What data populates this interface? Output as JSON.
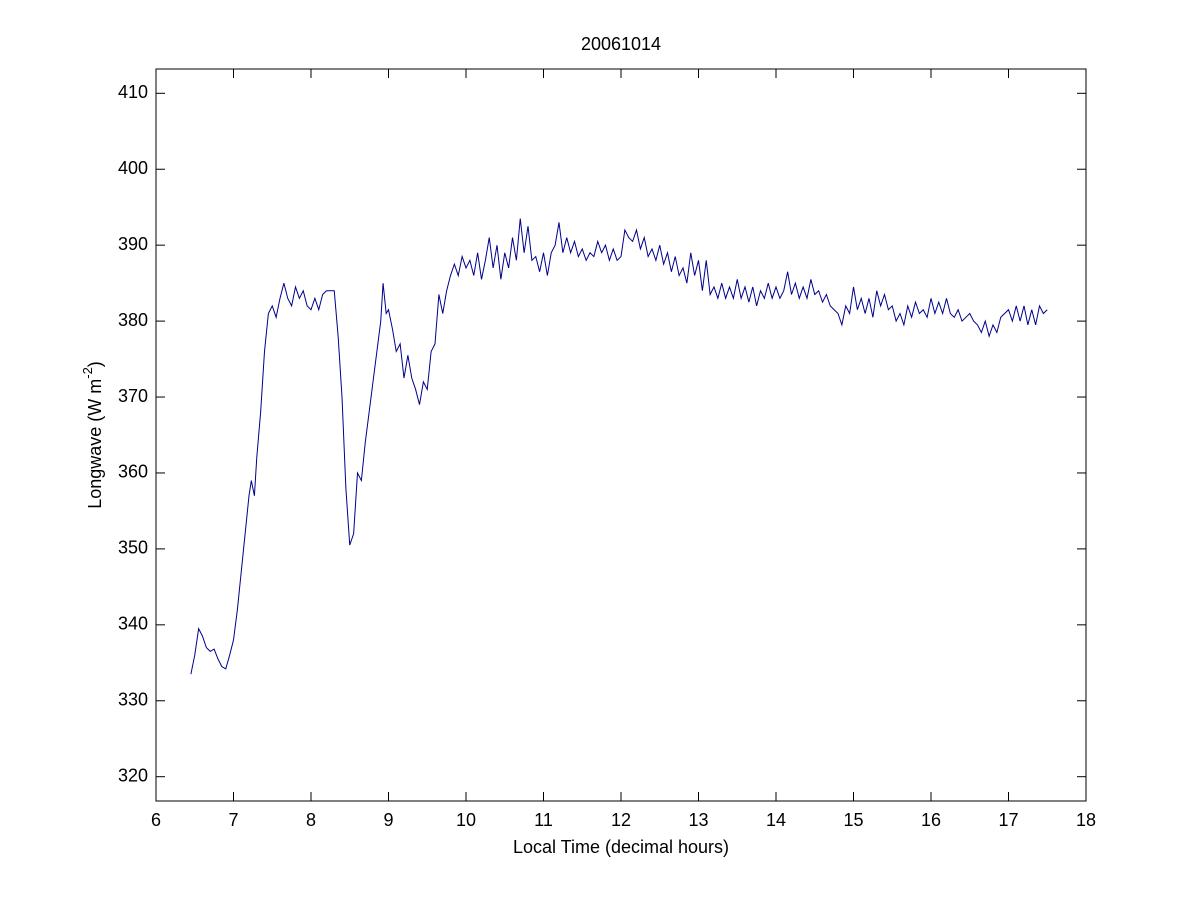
{
  "chart_data": {
    "type": "line",
    "title": "20061014",
    "x_label": "Local Time (decimal hours)",
    "y_label": [
      "Longwave (W m",
      "-2",
      ")"
    ],
    "xlim": [
      6,
      18
    ],
    "xticks": [
      6,
      7,
      8,
      9,
      10,
      11,
      12,
      13,
      14,
      15,
      16,
      17,
      18
    ],
    "ylim": [
      316.8,
      413.2
    ],
    "yticks": [
      320,
      330,
      340,
      350,
      360,
      370,
      380,
      390,
      400,
      410
    ],
    "grid": false,
    "x": [
      6.45,
      6.5,
      6.55,
      6.6,
      6.65,
      6.7,
      6.75,
      6.8,
      6.85,
      6.9,
      6.95,
      7.0,
      7.05,
      7.1,
      7.15,
      7.2,
      7.23,
      7.27,
      7.3,
      7.35,
      7.4,
      7.45,
      7.5,
      7.55,
      7.6,
      7.65,
      7.7,
      7.75,
      7.8,
      7.85,
      7.9,
      7.95,
      8.0,
      8.05,
      8.1,
      8.15,
      8.2,
      8.25,
      8.3,
      8.35,
      8.4,
      8.45,
      8.5,
      8.55,
      8.6,
      8.65,
      8.7,
      8.75,
      8.8,
      8.85,
      8.9,
      8.93,
      8.97,
      9.0,
      9.05,
      9.1,
      9.15,
      9.2,
      9.25,
      9.3,
      9.35,
      9.4,
      9.45,
      9.5,
      9.55,
      9.6,
      9.65,
      9.7,
      9.75,
      9.8,
      9.85,
      9.9,
      9.95,
      10.0,
      10.05,
      10.1,
      10.15,
      10.2,
      10.25,
      10.3,
      10.35,
      10.4,
      10.45,
      10.5,
      10.55,
      10.6,
      10.65,
      10.7,
      10.75,
      10.8,
      10.85,
      10.9,
      10.95,
      11.0,
      11.05,
      11.1,
      11.15,
      11.2,
      11.25,
      11.3,
      11.35,
      11.4,
      11.45,
      11.5,
      11.55,
      11.6,
      11.65,
      11.7,
      11.75,
      11.8,
      11.85,
      11.9,
      11.95,
      12.0,
      12.05,
      12.1,
      12.15,
      12.2,
      12.25,
      12.3,
      12.35,
      12.4,
      12.45,
      12.5,
      12.55,
      12.6,
      12.65,
      12.7,
      12.75,
      12.8,
      12.85,
      12.9,
      12.95,
      13.0,
      13.05,
      13.1,
      13.15,
      13.2,
      13.25,
      13.3,
      13.35,
      13.4,
      13.45,
      13.5,
      13.55,
      13.6,
      13.65,
      13.7,
      13.75,
      13.8,
      13.85,
      13.9,
      13.95,
      14.0,
      14.05,
      14.1,
      14.15,
      14.2,
      14.25,
      14.3,
      14.35,
      14.4,
      14.45,
      14.5,
      14.55,
      14.6,
      14.65,
      14.7,
      14.75,
      14.8,
      14.85,
      14.9,
      14.95,
      15.0,
      15.05,
      15.1,
      15.15,
      15.2,
      15.25,
      15.3,
      15.35,
      15.4,
      15.45,
      15.5,
      15.55,
      15.6,
      15.65,
      15.7,
      15.75,
      15.8,
      15.85,
      15.9,
      15.95,
      16.0,
      16.05,
      16.1,
      16.15,
      16.2,
      16.25,
      16.3,
      16.35,
      16.4,
      16.45,
      16.5,
      16.55,
      16.6,
      16.65,
      16.7,
      16.75,
      16.8,
      16.85,
      16.9,
      16.95,
      17.0,
      17.05,
      17.1,
      17.15,
      17.2,
      17.25,
      17.3,
      17.35,
      17.4,
      17.45,
      17.5
    ],
    "series": [
      {
        "color": "#00008b",
        "values": [
          333.5,
          336,
          339.5,
          338.5,
          337,
          336.5,
          336.8,
          335.5,
          334.5,
          334.2,
          336,
          338,
          342,
          347,
          352,
          357,
          359,
          357,
          362,
          368,
          376,
          381,
          382,
          380.5,
          383,
          385,
          383,
          382,
          384.5,
          383,
          384,
          382,
          381.5,
          383,
          381.5,
          383.5,
          384,
          384,
          384,
          378,
          370,
          358,
          350.5,
          352,
          360,
          359,
          364,
          368,
          372,
          376,
          380,
          385,
          381,
          381.5,
          379,
          376,
          377,
          372.5,
          375.5,
          372.5,
          371,
          369,
          372,
          371,
          376,
          377,
          383.5,
          381,
          384,
          386,
          387.5,
          386,
          388.5,
          387,
          388,
          386,
          389,
          385.5,
          388,
          391,
          387,
          390,
          385.5,
          389,
          387,
          391,
          388,
          393.5,
          389,
          392.5,
          388,
          388.5,
          386.5,
          389,
          386,
          389,
          390,
          393,
          389,
          391,
          389,
          390.5,
          388.5,
          389.5,
          388,
          389,
          388.5,
          390.5,
          389,
          390,
          388,
          389.5,
          388,
          388.5,
          392,
          391,
          390.5,
          392,
          389.5,
          391,
          388.5,
          389.5,
          388,
          390,
          387.5,
          389,
          386.5,
          388.5,
          386,
          387,
          385,
          389,
          386,
          388,
          384,
          388,
          383.5,
          384.5,
          383,
          385,
          383,
          384.5,
          383,
          385.5,
          383,
          384.5,
          382.5,
          384.5,
          382,
          384,
          383,
          385,
          383,
          384.5,
          383,
          384,
          386.5,
          383.5,
          385,
          383,
          384.5,
          383,
          385.5,
          383.5,
          384,
          382.5,
          383.5,
          382,
          381.5,
          381,
          379.5,
          382,
          381,
          384.5,
          381.5,
          383,
          381,
          383,
          380.5,
          384,
          382,
          383.5,
          381.5,
          382,
          380,
          381,
          379.5,
          382,
          380.5,
          382.5,
          381,
          381.5,
          380.5,
          383,
          381,
          382.5,
          381,
          383,
          381,
          380.5,
          381.5,
          380,
          380.5,
          381,
          380,
          379.5,
          378.5,
          380,
          378,
          379.5,
          378.5,
          380.5,
          381,
          381.5,
          380,
          382,
          380,
          382,
          379.5,
          381.5,
          379.5,
          382,
          381,
          381.5
        ]
      }
    ]
  }
}
